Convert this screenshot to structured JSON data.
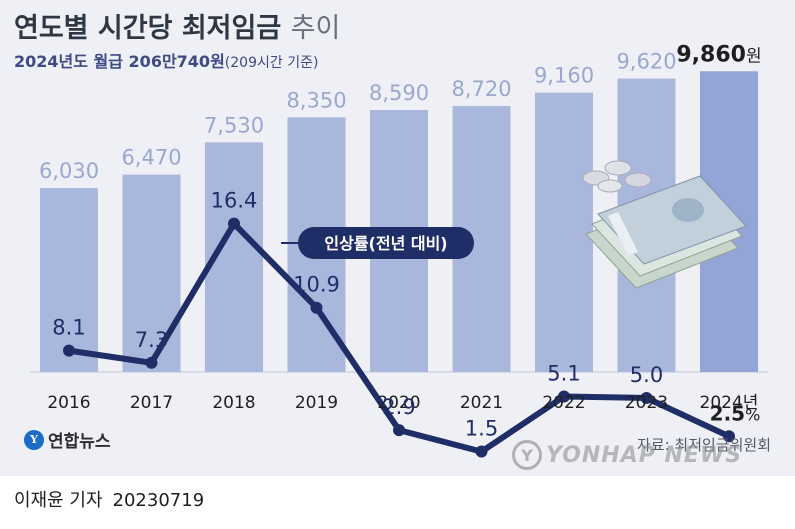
{
  "title_main": "연도별 시간당 최저임금",
  "title_light": "추이",
  "subtitle_main": "2024년도 월급 206만740원",
  "subtitle_paren": "(209시간 기준)",
  "chart_data": {
    "type": "bar",
    "categories": [
      "2016",
      "2017",
      "2018",
      "2019",
      "2020",
      "2021",
      "2022",
      "2023",
      "2024년"
    ],
    "series": [
      {
        "values": [
          6030,
          6470,
          7530,
          8350,
          8590,
          8720,
          9160,
          9620,
          9860
        ]
      },
      {
        "name": "인상률(전년 대비)",
        "type": "line",
        "values": [
          8.1,
          7.3,
          16.4,
          10.9,
          2.9,
          1.5,
          5.1,
          5.0,
          2.5
        ]
      }
    ],
    "bar_labels": [
      "6,030",
      "6,470",
      "7,530",
      "8,350",
      "8,590",
      "8,720",
      "9,160",
      "9,620",
      "9,860"
    ],
    "bar_last_unit": "원",
    "line_labels": [
      "8.1",
      "7.3",
      "16.4",
      "10.9",
      "2.9",
      "1.5",
      "5.1",
      "5.0",
      "2.5"
    ],
    "line_last_unit": "%",
    "bar_color": "#aab7dd",
    "bar_highlight_color": "#93a5d6",
    "line_color": "#1f2e66",
    "bar_label_color": "#9aa8cf",
    "line_label_color": "#1f2e66",
    "grid": false
  },
  "legend_label": "인상률(전년 대비)",
  "source": "자료: 최저임금위원회",
  "logo_text": "연합뉴스",
  "watermark_text": "YONHAP NEWS",
  "byline_name": "이재윤 기자",
  "byline_date": "20230719",
  "icons": [
    "money-illustration",
    "yonhap-logo-icon",
    "yonhap-watermark-icon"
  ]
}
